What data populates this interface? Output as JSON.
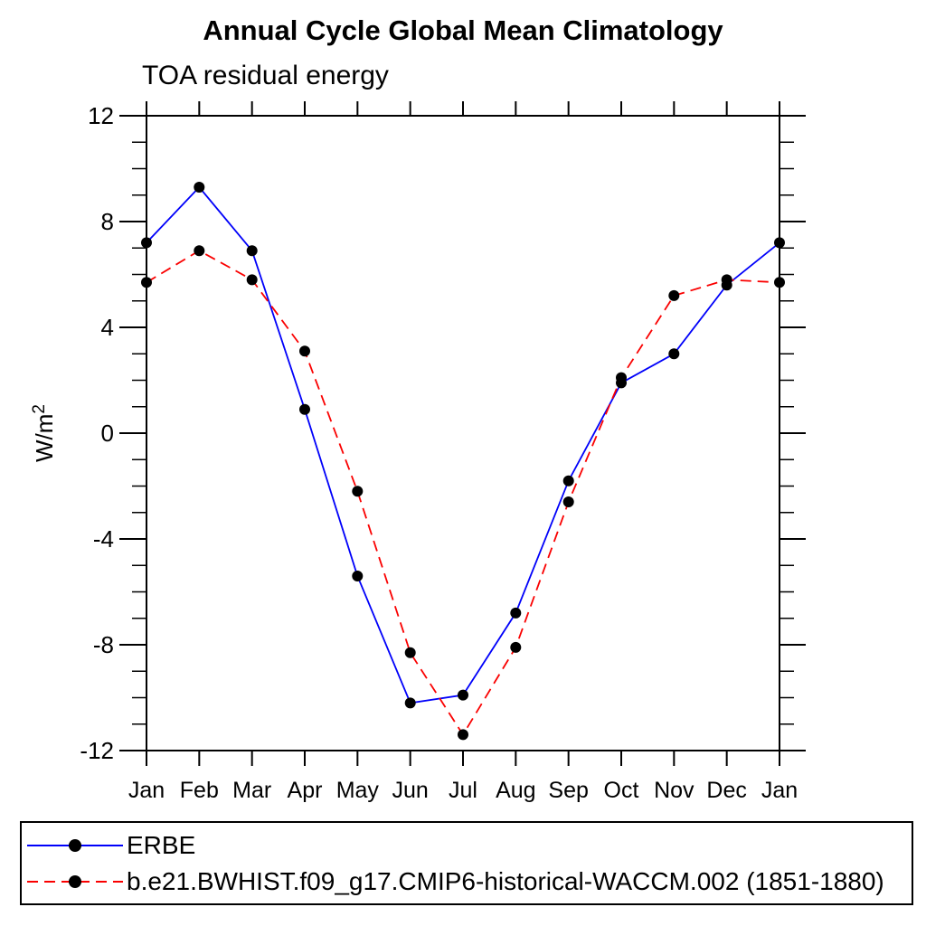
{
  "chart_data": {
    "type": "line",
    "title": "Annual Cycle Global Mean Climatology",
    "subtitle": "TOA residual energy",
    "ylabel": "W/m²",
    "ylabel_base": "W/m",
    "ylabel_sup": "2",
    "xlabel": "",
    "x_categories": [
      "Jan",
      "Feb",
      "Mar",
      "Apr",
      "May",
      "Jun",
      "Jul",
      "Aug",
      "Sep",
      "Oct",
      "Nov",
      "Dec",
      "Jan"
    ],
    "ylim": [
      -12,
      12
    ],
    "yticks_major": [
      -12,
      -8,
      -4,
      0,
      4,
      8,
      12
    ],
    "ytick_minor_step": 1,
    "grid": false,
    "legend_position": "bottom",
    "axis_color": "#000000",
    "marker_color": "#000000",
    "series": [
      {
        "name": "ERBE",
        "color": "#0000fa",
        "line_style": "solid",
        "marker": "circle",
        "values": [
          7.2,
          9.3,
          6.9,
          0.9,
          -5.4,
          -10.2,
          -9.9,
          -6.8,
          -1.8,
          1.9,
          3.0,
          5.6,
          7.2
        ]
      },
      {
        "name": "b.e21.BWHIST.f09_g17.CMIP6-historical-WACCM.002 (1851-1880)",
        "color": "#fa0000",
        "line_style": "dashed",
        "marker": "circle",
        "values": [
          5.7,
          6.9,
          5.8,
          3.1,
          -2.2,
          -8.3,
          -11.4,
          -8.1,
          -2.6,
          2.1,
          5.2,
          5.8,
          5.7
        ]
      }
    ]
  }
}
